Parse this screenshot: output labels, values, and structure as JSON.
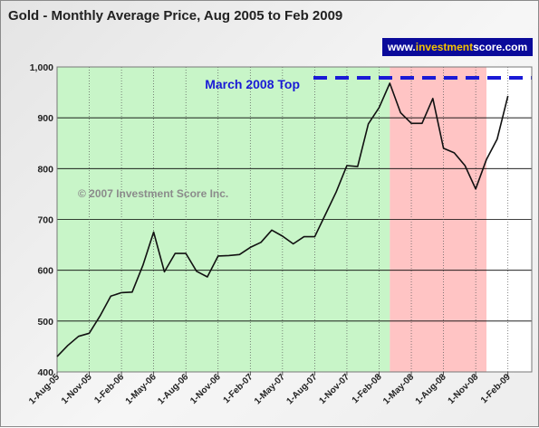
{
  "chart_data": {
    "type": "line",
    "title": "Gold - Monthly Average Price, Aug 2005 to Feb 2009",
    "x": [
      "1-Aug-05",
      "1-Sep-05",
      "1-Oct-05",
      "1-Nov-05",
      "1-Dec-05",
      "1-Jan-06",
      "1-Feb-06",
      "1-Mar-06",
      "1-Apr-06",
      "1-May-06",
      "1-Jun-06",
      "1-Jul-06",
      "1-Aug-06",
      "1-Sep-06",
      "1-Oct-06",
      "1-Nov-06",
      "1-Dec-06",
      "1-Jan-07",
      "1-Feb-07",
      "1-Mar-07",
      "1-Apr-07",
      "1-May-07",
      "1-Jun-07",
      "1-Jul-07",
      "1-Aug-07",
      "1-Sep-07",
      "1-Oct-07",
      "1-Nov-07",
      "1-Dec-07",
      "1-Jan-08",
      "1-Feb-08",
      "1-Mar-08",
      "1-Apr-08",
      "1-May-08",
      "1-Jun-08",
      "1-Jul-08",
      "1-Aug-08",
      "1-Sep-08",
      "1-Oct-08",
      "1-Nov-08",
      "1-Dec-08",
      "1-Jan-09",
      "1-Feb-09"
    ],
    "x_tick_labels": [
      "1-Aug-05",
      "1-Nov-05",
      "1-Feb-06",
      "1-May-06",
      "1-Aug-06",
      "1-Nov-06",
      "1-Feb-07",
      "1-May-07",
      "1-Aug-07",
      "1-Nov-07",
      "1-Feb-08",
      "1-May-08",
      "1-Aug-08",
      "1-Nov-08",
      "1-Feb-09"
    ],
    "series": [
      {
        "values": [
          430,
          452,
          470,
          476,
          510,
          549,
          556,
          557,
          610,
          675,
          597,
          633,
          633,
          598,
          587,
          628,
          629,
          631,
          645,
          655,
          679,
          667,
          652,
          666,
          666,
          710,
          754,
          806,
          804,
          888,
          920,
          968,
          910,
          889,
          889,
          938,
          840,
          831,
          806,
          760,
          818,
          858,
          943
        ],
        "color": "#111111"
      }
    ],
    "ylim": [
      400,
      1000
    ],
    "y_ticks": [
      "400",
      "500",
      "600",
      "700",
      "800",
      "900",
      "1,000"
    ],
    "grid": true,
    "shaded_regions": [
      {
        "from": "1-Aug-05",
        "to": "1-Mar-08",
        "color": "#c8f5c8"
      },
      {
        "from": "1-Mar-08",
        "to": "1-Dec-08",
        "color": "#ffc4c4"
      },
      {
        "from": "1-Dec-08",
        "to": "1-Feb-09",
        "color": "#ffffff"
      }
    ],
    "reference_line": {
      "label": "March 2008 Top",
      "value": 968,
      "color": "#1a1ad6",
      "from": "1-Mar-08"
    },
    "annotations": {
      "copyright": "© 2007 Investment Score Inc.",
      "brand_prefix": "www.",
      "brand_highlight": "investment",
      "brand_suffix": "score.com"
    },
    "colors": {
      "brand_bg": "#0a0a9a",
      "brand_highlight": "#f4c400"
    }
  }
}
